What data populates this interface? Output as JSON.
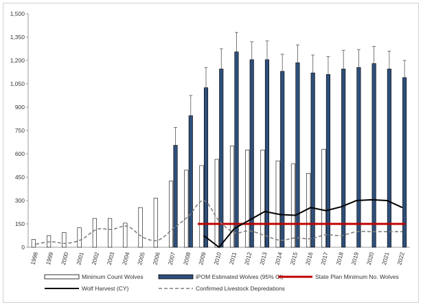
{
  "chart_data": {
    "type": "bar",
    "title": "",
    "xlabel": "",
    "ylabel": "",
    "ylim": [
      0,
      1500
    ],
    "yticks": [
      0,
      150,
      300,
      450,
      600,
      750,
      900,
      1050,
      1200,
      1350,
      1500
    ],
    "categories": [
      "1998",
      "1999",
      "2000",
      "2001",
      "2002",
      "2003",
      "2004",
      "2005",
      "2006",
      "2007",
      "2008",
      "2009",
      "2010",
      "2011",
      "2012",
      "2013",
      "2014",
      "2015",
      "2016",
      "2017",
      "2018",
      "2019",
      "2020",
      "2021",
      "2022"
    ],
    "grid": false,
    "legend_position": "bottom",
    "series": [
      {
        "name": "Minimum Count Wolves",
        "kind": "bar",
        "color": "#ffffff",
        "stroke": "#000000",
        "values": [
          50,
          75,
          95,
          125,
          185,
          185,
          155,
          255,
          315,
          425,
          495,
          525,
          565,
          650,
          625,
          625,
          555,
          535,
          475,
          630,
          null,
          null,
          null,
          null,
          null
        ]
      },
      {
        "name": "iPOM Estimated Wolves (95% CI)",
        "kind": "bar",
        "color": "#2f4f7a",
        "stroke": "#000000",
        "values": [
          null,
          null,
          null,
          null,
          null,
          null,
          null,
          null,
          null,
          655,
          845,
          1025,
          1145,
          1255,
          1205,
          1205,
          1130,
          1185,
          1120,
          1110,
          1145,
          1155,
          1180,
          1145,
          1090
        ],
        "ci_upper": [
          null,
          null,
          null,
          null,
          null,
          null,
          null,
          null,
          null,
          770,
          975,
          1155,
          1275,
          1380,
          1320,
          1325,
          1240,
          1300,
          1235,
          1225,
          1265,
          1270,
          1290,
          1260,
          1200
        ]
      },
      {
        "name": "State Plan Minimum No. Wolves",
        "kind": "line",
        "color": "#c00000",
        "values": [
          null,
          null,
          null,
          null,
          null,
          null,
          null,
          null,
          null,
          null,
          null,
          150,
          150,
          150,
          150,
          150,
          150,
          150,
          150,
          150,
          150,
          150,
          150,
          150,
          150
        ]
      },
      {
        "name": "Wolf Harvest (CY)",
        "kind": "line",
        "color": "#000000",
        "values": [
          null,
          null,
          null,
          null,
          null,
          null,
          null,
          null,
          null,
          null,
          null,
          75,
          0,
          120,
          175,
          230,
          210,
          205,
          255,
          235,
          260,
          300,
          305,
          300,
          255
        ]
      },
      {
        "name": "Confirmed Livestock Depredations",
        "kind": "line",
        "dashed": true,
        "color": "#7f7f7f",
        "values": [
          20,
          35,
          25,
          50,
          115,
          115,
          135,
          65,
          45,
          120,
          200,
          300,
          170,
          95,
          105,
          75,
          45,
          60,
          55,
          80,
          75,
          100,
          100,
          100,
          100
        ]
      }
    ]
  }
}
